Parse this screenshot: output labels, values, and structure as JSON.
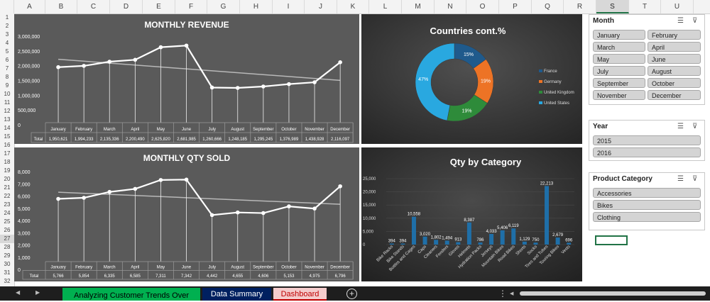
{
  "columns": [
    "A",
    "B",
    "C",
    "D",
    "E",
    "F",
    "G",
    "H",
    "I",
    "J",
    "K",
    "L",
    "M",
    "N",
    "O",
    "P",
    "Q",
    "R",
    "S",
    "T",
    "U"
  ],
  "selected_column": "S",
  "rows": [
    "1",
    "2",
    "3",
    "4",
    "5",
    "6",
    "7",
    "8",
    "9",
    "10",
    "11",
    "12",
    "13",
    "14",
    "15",
    "16",
    "17",
    "18",
    "19",
    "20",
    "21",
    "22",
    "23",
    "24",
    "25",
    "26",
    "27",
    "28",
    "29",
    "30",
    "31",
    "32"
  ],
  "selected_row": "27",
  "charts": {
    "revenue": {
      "title": "MONTHLY REVENUE"
    },
    "qty": {
      "title": "MONTHLY QTY SOLD"
    },
    "countries": {
      "title": "Countries cont.%"
    },
    "category": {
      "title": "Qty by Category"
    }
  },
  "table_total_label": "Total",
  "chart_data": [
    {
      "type": "line",
      "title": "MONTHLY REVENUE",
      "categories": [
        "January",
        "February",
        "March",
        "April",
        "May",
        "June",
        "July",
        "August",
        "September",
        "October",
        "November",
        "December"
      ],
      "values": [
        1950621,
        1994233,
        2135336,
        2200490,
        2625820,
        2681985,
        1260666,
        1248185,
        1295245,
        1376989,
        1438928,
        2116097
      ],
      "value_labels": [
        "1,950,621",
        "1,994,233",
        "2,135,336",
        "2,200,490",
        "2,625,820",
        "2,681,985",
        "1,260,666",
        "1,248,185",
        "1,295,245",
        "1,376,989",
        "1,438,928",
        "2,116,097"
      ],
      "yticks": [
        "3,000,000",
        "2,500,000",
        "2,000,000",
        "1,500,000",
        "1,000,000",
        "500,000",
        "0"
      ],
      "ylim": [
        0,
        3000000
      ],
      "trendline": true,
      "grid": false
    },
    {
      "type": "line",
      "title": "MONTHLY QTY SOLD",
      "categories": [
        "January",
        "February",
        "March",
        "April",
        "May",
        "June",
        "July",
        "August",
        "September",
        "October",
        "November",
        "December"
      ],
      "values": [
        5766,
        5854,
        6335,
        6585,
        7311,
        7342,
        4442,
        4655,
        4606,
        5153,
        4975,
        6796
      ],
      "value_labels": [
        "5,766",
        "5,854",
        "6,335",
        "6,585",
        "7,311",
        "7,342",
        "4,442",
        "4,655",
        "4,606",
        "5,153",
        "4,975",
        "6,796"
      ],
      "yticks": [
        "8,000",
        "7,000",
        "6,000",
        "5,000",
        "4,000",
        "3,000",
        "2,000",
        "1,000",
        "0"
      ],
      "ylim": [
        0,
        8000
      ],
      "trendline": true,
      "grid": false
    },
    {
      "type": "pie",
      "title": "Countries cont.%",
      "labels": [
        "France",
        "Germany",
        "United Kingdom",
        "United States"
      ],
      "values": [
        15,
        19,
        19,
        47
      ],
      "value_labels": [
        "15%",
        "19%",
        "19%",
        "47%"
      ],
      "colors": [
        "#1f5a8c",
        "#ed7325",
        "#2e8b3a",
        "#29a8e0"
      ],
      "legend": "right"
    },
    {
      "type": "bar",
      "title": "Qty by Category",
      "categories": [
        "Bike Racks",
        "Bike Stands",
        "Bottles and Cages",
        "Caps",
        "Cleaners",
        "Fenders",
        "Gloves",
        "Helmets",
        "Hydration Packs",
        "Jerseys",
        "Mountain Bikes",
        "Road Bikes",
        "Shorts",
        "Socks",
        "Tires and Tubes",
        "Touring Bikes",
        "Vests"
      ],
      "values": [
        394,
        394,
        10558,
        3020,
        1802,
        1494,
        913,
        8387,
        786,
        4033,
        5406,
        6119,
        1129,
        750,
        22213,
        2679,
        696
      ],
      "value_labels": [
        "394",
        "394",
        "10,558",
        "3,020",
        "1,802",
        "1,494",
        "913",
        "8,387",
        "786",
        "4,033",
        "5,406",
        "6,119",
        "1,129",
        "750",
        "22,213",
        "2,679",
        "696"
      ],
      "yticks": [
        "25,000",
        "20,000",
        "15,000",
        "10,000",
        "5,000",
        "0"
      ],
      "ylim": [
        0,
        25000
      ],
      "grid": true,
      "color": "#1f6fa8"
    }
  ],
  "slicers": {
    "month": {
      "title": "Month",
      "items": [
        "January",
        "February",
        "March",
        "April",
        "May",
        "June",
        "July",
        "August",
        "September",
        "October",
        "November",
        "December"
      ]
    },
    "year": {
      "title": "Year",
      "items": [
        "2015",
        "2016"
      ]
    },
    "category": {
      "title": "Product Category",
      "items": [
        "Accessories",
        "Bikes",
        "Clothing"
      ]
    }
  },
  "tabs": [
    {
      "label": "Analyzing Customer Trends Over",
      "bg": "#00b050",
      "fg": "#000000"
    },
    {
      "label": "Data Summary",
      "bg": "#002060",
      "fg": "#ffffff"
    },
    {
      "label": "Dashboard",
      "bg": "#f4cccc",
      "fg": "#c00000"
    }
  ],
  "icons": {
    "nav_prev": "◀",
    "nav_next": "▶",
    "add_sheet": "+",
    "more": "⋮",
    "multiselect": "☰",
    "clear_filter": "⊽"
  }
}
